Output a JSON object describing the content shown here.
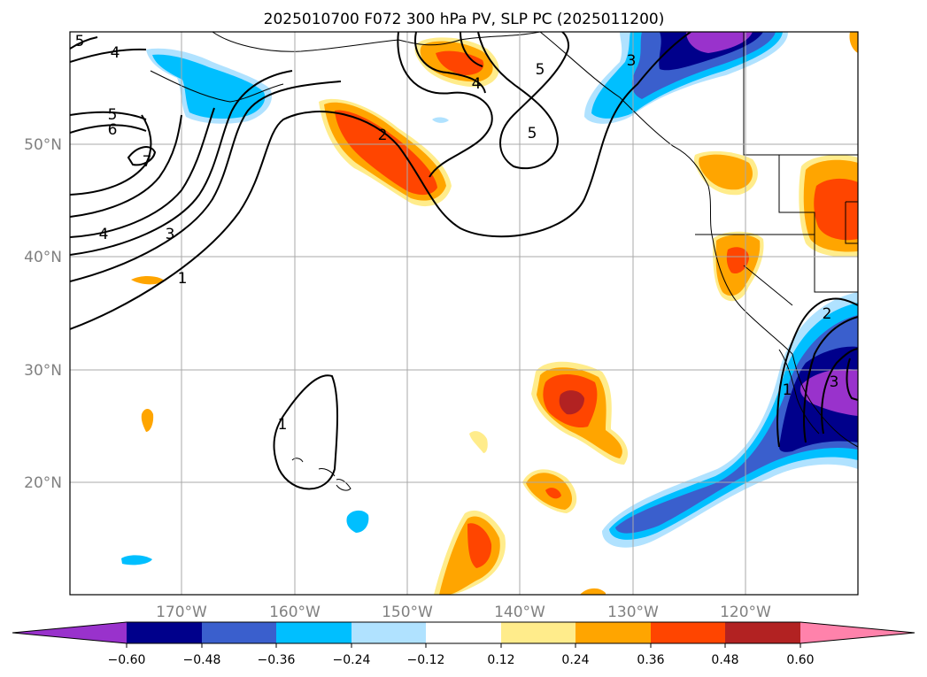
{
  "title": "2025010700 F072 300 hPa PV, SLP PC (2025011200)",
  "colors": {
    "neg_extend": "#9932cc",
    "n060": "#00008b",
    "n048": "#3a5fcd",
    "n036": "#00bfff",
    "n024": "#b0e2ff",
    "n012": "#ffffff",
    "p012": "#ffec8b",
    "p024": "#ffa500",
    "p036": "#ff4500",
    "p048": "#b22222",
    "pos_extend": "#ff82ab",
    "grid": "#a9a9a9",
    "contour": "#000000"
  },
  "chart_data": {
    "type": "heatmap",
    "lon_range": [
      -180,
      -110
    ],
    "lat_range": [
      10,
      60
    ],
    "grid": true,
    "lon_ticks": [
      "170°W",
      "160°W",
      "150°W",
      "140°W",
      "130°W",
      "120°W"
    ],
    "lat_ticks": [
      "20°N",
      "30°N",
      "40°N",
      "50°N"
    ],
    "colorbar": {
      "orientation": "horizontal",
      "extend": "both",
      "levels": [
        -0.6,
        -0.48,
        -0.36,
        -0.24,
        -0.12,
        0.12,
        0.24,
        0.36,
        0.48,
        0.6
      ],
      "tick_labels": [
        "−0.60",
        "−0.48",
        "−0.36",
        "−0.24",
        "−0.12",
        "0.12",
        "0.24",
        "0.36",
        "0.48",
        "0.60"
      ]
    },
    "contour_labels": [
      "5",
      "4",
      "5",
      "6",
      "7",
      "4",
      "3",
      "1",
      "2",
      "4",
      "3",
      "5",
      "5",
      "2",
      "1",
      "3",
      "1"
    ]
  }
}
